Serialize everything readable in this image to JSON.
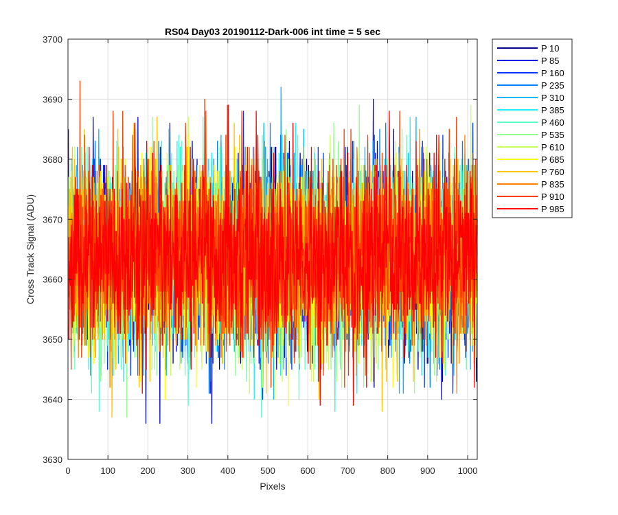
{
  "chart_data": {
    "type": "line",
    "title": "RS04 Day03 20190112-Dark-006 int time = 5 sec",
    "xlabel": "Pixels",
    "ylabel": "Cross Track Signal (ADU)",
    "xlim": [
      0,
      1024
    ],
    "ylim": [
      3630,
      3700
    ],
    "xticks": [
      0,
      100,
      200,
      300,
      400,
      500,
      600,
      700,
      800,
      900,
      1000
    ],
    "yticks": [
      3630,
      3640,
      3650,
      3660,
      3670,
      3680,
      3690,
      3700
    ],
    "grid": true,
    "legend_position": "outside-right",
    "pixel_count": 1024,
    "signal_mean": 3664,
    "series": [
      {
        "name": "P 10",
        "color": "#00008f"
      },
      {
        "name": "P 85",
        "color": "#0000ea"
      },
      {
        "name": "P 160",
        "color": "#0033ff"
      },
      {
        "name": "P 235",
        "color": "#007fff"
      },
      {
        "name": "P 310",
        "color": "#00b8ff"
      },
      {
        "name": "P 385",
        "color": "#1ff0ff"
      },
      {
        "name": "P 460",
        "color": "#5dffc9"
      },
      {
        "name": "P 535",
        "color": "#8fff8f"
      },
      {
        "name": "P 610",
        "color": "#c9ff5d"
      },
      {
        "name": "P 685",
        "color": "#ffff00"
      },
      {
        "name": "P 760",
        "color": "#ffc400"
      },
      {
        "name": "P 835",
        "color": "#ff8000"
      },
      {
        "name": "P 910",
        "color": "#ff3c00"
      },
      {
        "name": "P 985",
        "color": "#ff0000"
      }
    ]
  }
}
